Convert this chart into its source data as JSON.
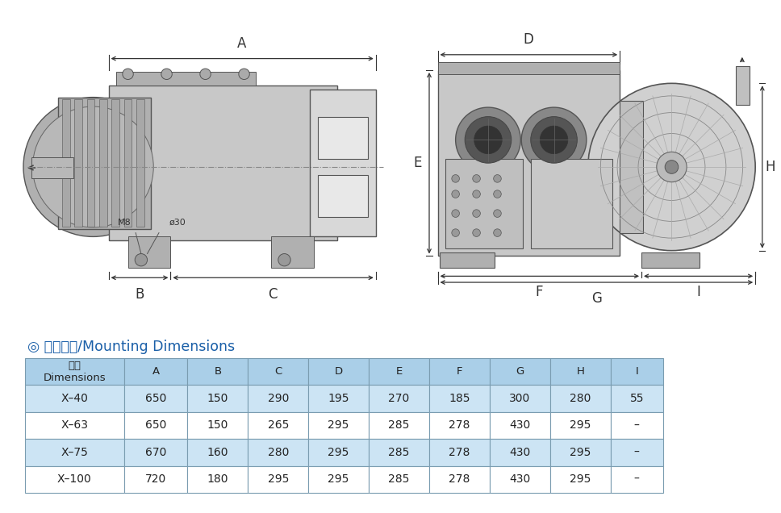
{
  "title_text": "◎ 安装尺寸/Mounting Dimensions",
  "title_color": "#1a5fa8",
  "title_fontsize": 12.5,
  "header_row": [
    "尺寸\nDimensions",
    "A",
    "B",
    "C",
    "D",
    "E",
    "F",
    "G",
    "H",
    "I"
  ],
  "data_rows": [
    [
      "X–40",
      "650",
      "150",
      "290",
      "195",
      "270",
      "185",
      "300",
      "280",
      "55"
    ],
    [
      "X–63",
      "650",
      "150",
      "265",
      "295",
      "285",
      "278",
      "430",
      "295",
      "–"
    ],
    [
      "X–75",
      "670",
      "160",
      "280",
      "295",
      "285",
      "278",
      "430",
      "295",
      "–"
    ],
    [
      "X–100",
      "720",
      "180",
      "295",
      "295",
      "285",
      "278",
      "430",
      "295",
      "–"
    ]
  ],
  "header_bg": "#aacfe8",
  "odd_row_bg": "#cce4f4",
  "even_row_bg": "#ffffff",
  "table_border_color": "#7a9cb0",
  "text_color": "#222222",
  "background_color": "#ffffff",
  "dim_color": "#333333",
  "body_dark": "#b0b0b0",
  "body_mid": "#c8c8c8",
  "body_light": "#d8d8d8",
  "body_lighter": "#e4e4e4"
}
